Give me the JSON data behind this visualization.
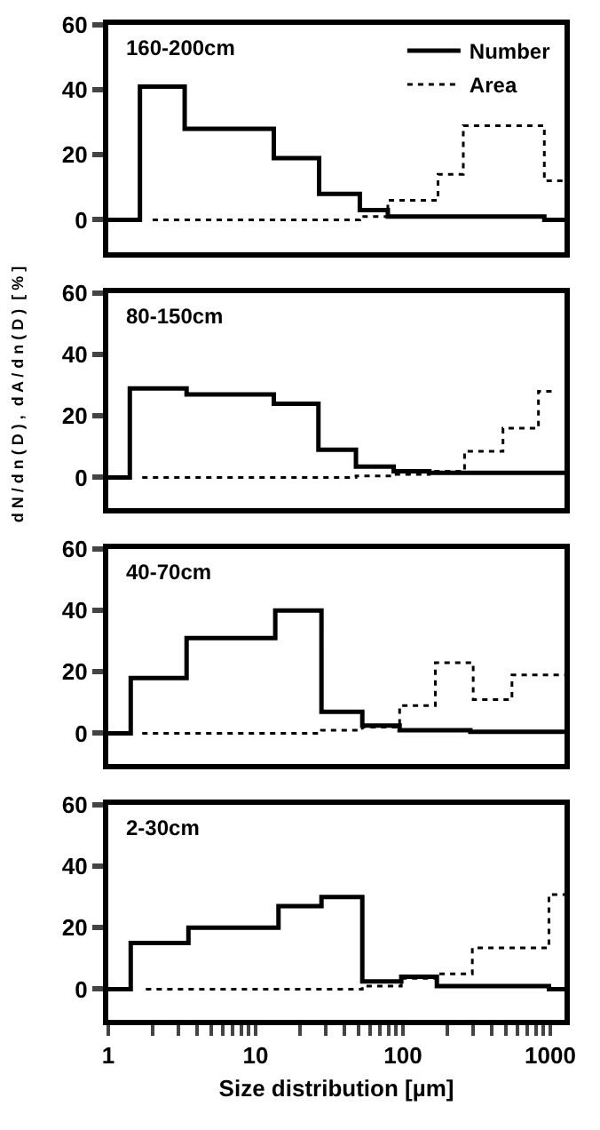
{
  "chart_data": [
    {
      "type": "step",
      "annotations": [
        "160-200cm"
      ],
      "xlim": [
        1,
        1250
      ],
      "log": "x",
      "ylim": [
        -10,
        60
      ],
      "yticks": [
        0,
        20,
        40,
        60
      ],
      "tick_labels": "y",
      "legend": "top right",
      "series": [
        {
          "name": "Number",
          "color": "#000000",
          "line_style": "solid",
          "x": [
            1,
            1.64,
            3.3,
            13.3,
            27,
            51,
            79,
            912,
            1250
          ],
          "values": [
            0,
            41,
            28,
            19,
            8,
            3,
            1,
            0,
            0
          ]
        },
        {
          "name": "Area",
          "color": "#000000",
          "line_style": "dotted",
          "x": [
            2,
            51,
            79,
            173,
            257,
            912,
            1250
          ],
          "values": [
            0,
            1,
            6,
            14,
            29,
            12,
            12
          ]
        }
      ]
    },
    {
      "type": "step",
      "annotations": [
        "80-150cm"
      ],
      "ylabel": "d N / d n ( D ) ,  d A / d n ( D )  [ % ]",
      "xlim": [
        1,
        1250
      ],
      "log": "x",
      "ylim": [
        -10,
        60
      ],
      "yticks": [
        0,
        20,
        40,
        60
      ],
      "tick_labels": "y",
      "series": [
        {
          "color": "#000000",
          "line_style": "solid",
          "x": [
            1,
            1.4,
            3.4,
            13.3,
            26.7,
            48,
            86.5,
            151,
            1250
          ],
          "values": [
            0,
            29,
            27,
            24,
            9,
            3.5,
            2,
            1.5,
            1.5
          ]
        },
        {
          "color": "#000000",
          "line_style": "dotted",
          "x": [
            1.7,
            48,
            86.5,
            151,
            262,
            478,
            832,
            1050
          ],
          "values": [
            0,
            0.5,
            1,
            2,
            8.5,
            16,
            28,
            28
          ]
        }
      ]
    },
    {
      "type": "step",
      "annotations": [
        "40-70cm"
      ],
      "xlim": [
        1,
        1250
      ],
      "log": "x",
      "ylim": [
        -10,
        60
      ],
      "yticks": [
        0,
        20,
        40,
        60
      ],
      "tick_labels": "y",
      "series": [
        {
          "color": "#000000",
          "line_style": "solid",
          "x": [
            1,
            1.42,
            3.4,
            13.6,
            28,
            53,
            95,
            287,
            1250
          ],
          "values": [
            0,
            18,
            31,
            40,
            7,
            2.5,
            1,
            0.5,
            0.5
          ]
        },
        {
          "color": "#000000",
          "line_style": "dotted",
          "x": [
            1.7,
            28,
            53,
            95,
            166,
            300,
            550,
            1250
          ],
          "values": [
            0,
            1,
            2,
            9,
            23,
            11,
            19,
            19
          ]
        }
      ]
    },
    {
      "type": "step",
      "annotations": [
        "2-30cm"
      ],
      "xlabel": "Size distribution [µm]",
      "xlim": [
        1,
        1250
      ],
      "log": "x",
      "xticks": [
        1,
        {
          "value": 2,
          "label": null
        },
        {
          "value": 3,
          "label": null
        },
        {
          "value": 4,
          "label": null
        },
        {
          "value": 5,
          "label": null
        },
        {
          "value": 6,
          "label": null
        },
        {
          "value": 7,
          "label": null
        },
        {
          "value": 8,
          "label": null
        },
        {
          "value": 9,
          "label": null
        },
        10,
        {
          "value": 20,
          "label": null
        },
        {
          "value": 30,
          "label": null
        },
        {
          "value": 40,
          "label": null
        },
        {
          "value": 50,
          "label": null
        },
        {
          "value": 60,
          "label": null
        },
        {
          "value": 70,
          "label": null
        },
        {
          "value": 80,
          "label": null
        },
        {
          "value": 90,
          "label": null
        },
        100,
        {
          "value": 200,
          "label": null
        },
        {
          "value": 300,
          "label": null
        },
        {
          "value": 400,
          "label": null
        },
        {
          "value": 500,
          "label": null
        },
        {
          "value": 600,
          "label": null
        },
        {
          "value": 700,
          "label": null
        },
        {
          "value": 800,
          "label": null
        },
        {
          "value": 900,
          "label": null
        },
        1000
      ],
      "ylim": [
        -10,
        60
      ],
      "yticks": [
        0,
        20,
        40,
        60
      ],
      "series": [
        {
          "color": "#000000",
          "line_style": "solid",
          "x": [
            1,
            1.42,
            3.5,
            14.3,
            28,
            53,
            97.5,
            170,
            980,
            1250
          ],
          "values": [
            0,
            15,
            20,
            27,
            30,
            2.5,
            4,
            1,
            0,
            0
          ]
        },
        {
          "color": "#000000",
          "line_style": "dotted",
          "x": [
            1.8,
            53,
            97.5,
            170,
            296,
            980,
            1250
          ],
          "values": [
            0,
            1,
            3.5,
            5,
            13.4,
            30.8,
            30.8
          ]
        }
      ]
    }
  ]
}
